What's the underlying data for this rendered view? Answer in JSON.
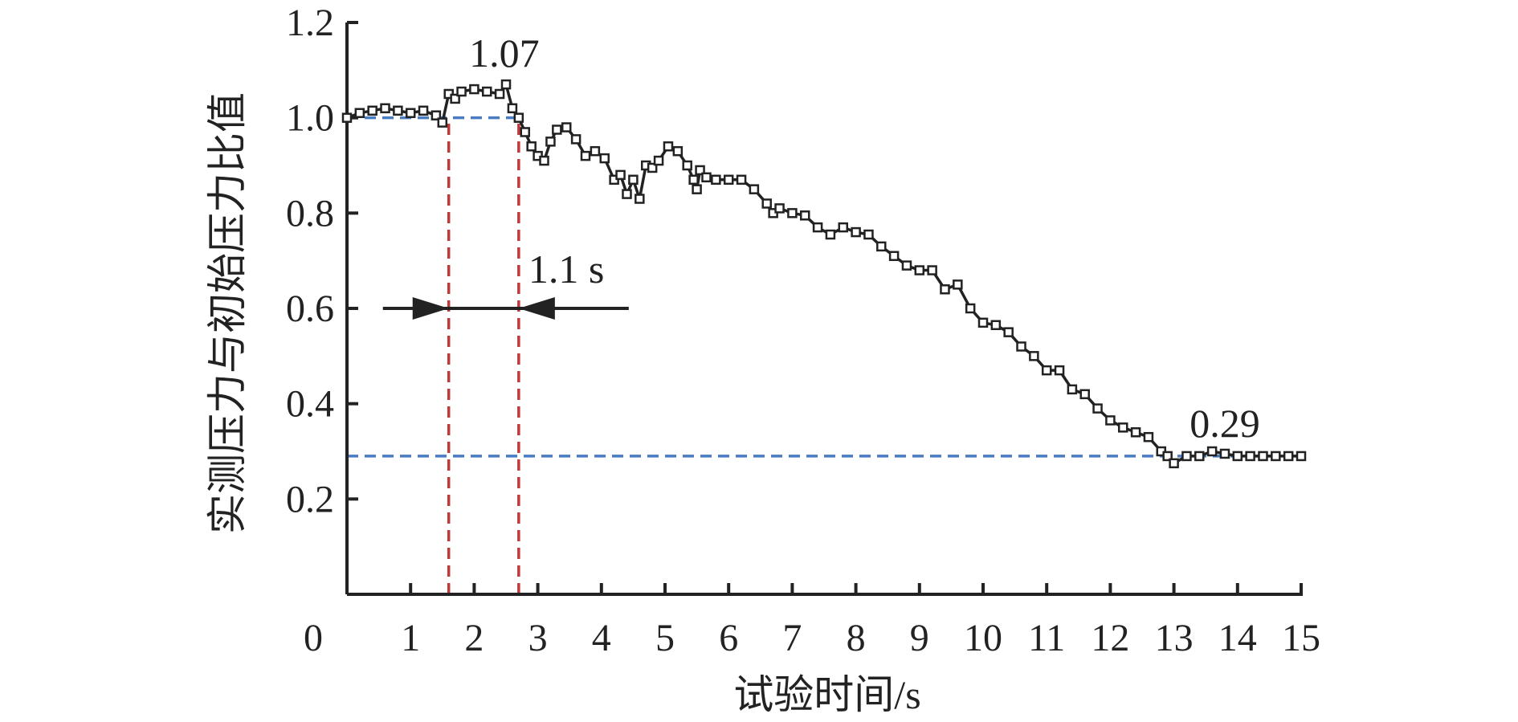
{
  "chart_data": {
    "type": "line",
    "title": "",
    "xlabel": "试验时间/s",
    "ylabel": "实测压力与初始压力比值",
    "xlim": [
      0,
      15
    ],
    "ylim": [
      0,
      1.2
    ],
    "x_ticks": [
      1,
      2,
      3,
      4,
      5,
      6,
      7,
      8,
      9,
      10,
      11,
      12,
      13,
      14,
      15
    ],
    "x_tick_labels": [
      "1",
      "2",
      "3",
      "4",
      "5",
      "6",
      "7",
      "8",
      "9",
      "10",
      "11",
      "12",
      "13",
      "14",
      "15"
    ],
    "y_ticks": [
      0.2,
      0.4,
      0.6,
      0.8,
      1.0,
      1.2
    ],
    "y_tick_labels": [
      "0.2",
      "0.4",
      "0.6",
      "0.8",
      "1.0",
      "1.2"
    ],
    "origin_label": "0",
    "grid": false,
    "legend": "none",
    "series": [
      {
        "color": "#222222",
        "marker": "square",
        "x": [
          0,
          0.2,
          0.4,
          0.6,
          0.8,
          1.0,
          1.2,
          1.4,
          1.5,
          1.6,
          1.7,
          1.8,
          2.0,
          2.2,
          2.4,
          2.5,
          2.6,
          2.7,
          2.8,
          2.9,
          3.0,
          3.1,
          3.2,
          3.3,
          3.45,
          3.6,
          3.75,
          3.9,
          4.05,
          4.2,
          4.3,
          4.4,
          4.5,
          4.6,
          4.7,
          4.8,
          4.9,
          5.05,
          5.2,
          5.35,
          5.45,
          5.5,
          5.55,
          5.65,
          5.8,
          6.0,
          6.2,
          6.4,
          6.6,
          6.7,
          6.8,
          7.0,
          7.2,
          7.4,
          7.6,
          7.8,
          8.0,
          8.2,
          8.4,
          8.6,
          8.8,
          9.0,
          9.2,
          9.4,
          9.6,
          9.8,
          10.0,
          10.2,
          10.4,
          10.6,
          10.8,
          11.0,
          11.2,
          11.4,
          11.6,
          11.8,
          12.0,
          12.2,
          12.4,
          12.6,
          12.8,
          12.9,
          13.0,
          13.2,
          13.4,
          13.6,
          13.8,
          14.0,
          14.2,
          14.4,
          14.6,
          14.8,
          15.0
        ],
        "y": [
          1.0,
          1.01,
          1.015,
          1.02,
          1.015,
          1.01,
          1.015,
          1.005,
          0.99,
          1.05,
          1.04,
          1.055,
          1.06,
          1.055,
          1.05,
          1.07,
          1.02,
          1.0,
          0.97,
          0.94,
          0.92,
          0.91,
          0.95,
          0.975,
          0.98,
          0.955,
          0.92,
          0.93,
          0.915,
          0.87,
          0.88,
          0.84,
          0.87,
          0.83,
          0.9,
          0.895,
          0.91,
          0.94,
          0.93,
          0.9,
          0.87,
          0.85,
          0.89,
          0.875,
          0.87,
          0.87,
          0.87,
          0.85,
          0.82,
          0.8,
          0.81,
          0.8,
          0.795,
          0.77,
          0.755,
          0.77,
          0.76,
          0.755,
          0.73,
          0.71,
          0.69,
          0.68,
          0.68,
          0.64,
          0.65,
          0.6,
          0.57,
          0.565,
          0.55,
          0.52,
          0.5,
          0.47,
          0.47,
          0.43,
          0.42,
          0.39,
          0.365,
          0.35,
          0.34,
          0.33,
          0.3,
          0.29,
          0.275,
          0.29,
          0.29,
          0.3,
          0.295,
          0.29,
          0.29,
          0.29,
          0.29,
          0.29,
          0.29
        ]
      }
    ],
    "reference_lines": [
      {
        "orientation": "horizontal",
        "value": 1.0,
        "color": "#4a7cc4",
        "style": "dashed",
        "x_range": [
          0,
          2.7
        ]
      },
      {
        "orientation": "horizontal",
        "value": 0.29,
        "color": "#4a7cc4",
        "style": "dashed",
        "x_range": [
          0,
          15
        ]
      },
      {
        "orientation": "vertical",
        "value": 1.6,
        "color": "#c0393b",
        "style": "dashed"
      },
      {
        "orientation": "vertical",
        "value": 2.7,
        "color": "#c0393b",
        "style": "dashed"
      }
    ],
    "annotations": [
      {
        "text": "1.07",
        "at_x": 2.6,
        "at_y": 1.07
      },
      {
        "text": "0.29",
        "at_x": 13.8,
        "at_y": 0.29
      },
      {
        "text": "1.1 s",
        "at_x": 2.7,
        "at_y": 0.6
      }
    ],
    "interval_marker": {
      "from": 1.6,
      "to": 2.7,
      "y": 0.6,
      "label": "1.1 s"
    }
  }
}
